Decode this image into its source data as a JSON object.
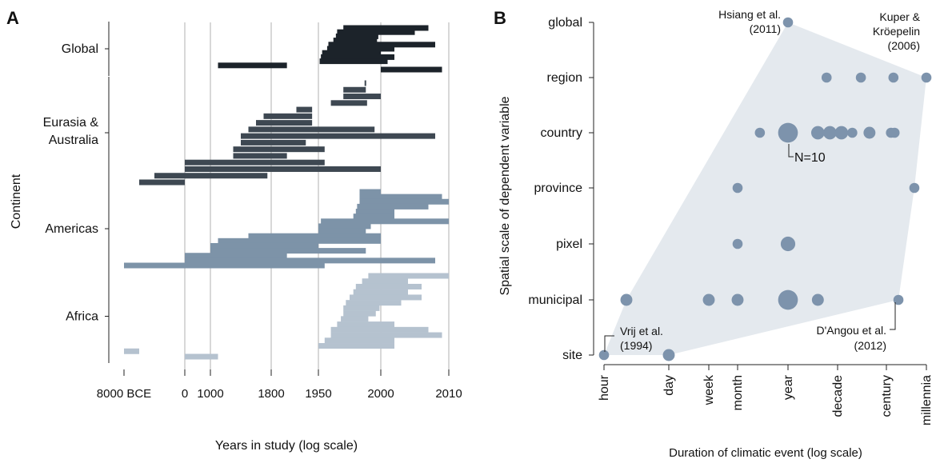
{
  "panel_a": {
    "panel_label": "A",
    "xlabel": "Years in study (log scale)",
    "ylabel": "Continent",
    "colors": {
      "Global": "#1c232a",
      "Eurasia & Australia": "#3e4852",
      "Americas": "#7d93a8",
      "Africa": "#b5c2cf"
    }
  },
  "panel_b": {
    "panel_label": "B",
    "xlabel": "Duration of climatic event (log scale)",
    "ylabel": "Spatial scale of dependent variable",
    "point_color": "#7d93ac",
    "hull_color": "#e4e9ee",
    "n_label": "N=10",
    "annotations": [
      {
        "id": "hsiang",
        "line1": "Hsiang et al.",
        "line2": "(2011)"
      },
      {
        "id": "kuper",
        "line1": "Kuper &",
        "line2": "Kröepelin",
        "line3": "(2006)"
      },
      {
        "id": "vrij",
        "line1": "Vrij et al.",
        "line2": "(1994)"
      },
      {
        "id": "dangou",
        "line1": "D'Angou et al.",
        "line2": "(2012)"
      }
    ]
  },
  "chart_data": [
    {
      "type": "bar",
      "subtype": "horizontal-range",
      "title": "",
      "xlabel": "Years in study (log scale)",
      "ylabel": "Continent",
      "x_tick_labels": [
        "8000 BCE",
        "0",
        "1000",
        "1800",
        "1950",
        "2000",
        "2010"
      ],
      "categories": [
        "Global",
        "Eurasia & Australia",
        "Americas",
        "Africa"
      ],
      "series": [
        {
          "name": "Global",
          "ranges": [
            [
              "1970",
              "2007"
            ],
            [
              "1965",
              "2005"
            ],
            [
              "1964",
              "1998"
            ],
            [
              "1962",
              "1997"
            ],
            [
              "1958",
              "2008"
            ],
            [
              "1957",
              "2002"
            ],
            [
              "1953",
              "2000"
            ],
            [
              "1952",
              "2002"
            ],
            [
              "1951",
              "2001"
            ],
            [
              "1100",
              "1850"
            ],
            [
              "2000",
              "2009"
            ]
          ]
        },
        {
          "name": "Eurasia & Australia",
          "ranges": [
            [
              "1987",
              "1988"
            ],
            [
              "1970",
              "1988"
            ],
            [
              "1970",
              "2000"
            ],
            [
              "1960",
              "1989"
            ],
            [
              "1880",
              "1930"
            ],
            [
              "1700",
              "1930"
            ],
            [
              "1600",
              "1930"
            ],
            [
              "1500",
              "1995"
            ],
            [
              "1400",
              "2008"
            ],
            [
              "1400",
              "1910"
            ],
            [
              "1300",
              "1955"
            ],
            [
              "1300",
              "1850"
            ],
            [
              "0",
              "1955"
            ],
            [
              "0",
              "2000"
            ],
            [
              "4000 BCE",
              "1750"
            ],
            [
              "6000 BCE",
              "0"
            ]
          ]
        },
        {
          "name": "Americas",
          "ranges": [
            [
              "1983",
              "2000"
            ],
            [
              "1983",
              "2009"
            ],
            [
              "1983",
              "2011"
            ],
            [
              "1981",
              "2007"
            ],
            [
              "1980",
              "2002"
            ],
            [
              "1978",
              "2002"
            ],
            [
              "1952",
              "2010"
            ],
            [
              "1950",
              "1992"
            ],
            [
              "1950",
              "1988"
            ],
            [
              "1500",
              "2000"
            ],
            [
              "1100",
              "2000"
            ],
            [
              "1000",
              "1950"
            ],
            [
              "1000",
              "1988"
            ],
            [
              "0",
              "1850"
            ],
            [
              "0",
              "2008"
            ],
            [
              "8000 BCE",
              "1955"
            ]
          ]
        },
        {
          "name": "Africa",
          "ranges": [
            [
              "1990",
              "2010"
            ],
            [
              "1985",
              "2004"
            ],
            [
              "1980",
              "2006"
            ],
            [
              "1978",
              "2004"
            ],
            [
              "1975",
              "2006"
            ],
            [
              "1972",
              "2003"
            ],
            [
              "1970",
              "1999"
            ],
            [
              "1970",
              "1996"
            ],
            [
              "1968",
              "1990"
            ],
            [
              "1965",
              "2002"
            ],
            [
              "1960",
              "2007"
            ],
            [
              "1960",
              "2009"
            ],
            [
              "1955",
              "2002"
            ],
            [
              "1950",
              "2002"
            ],
            [
              "8000 BCE",
              "6000 BCE"
            ],
            [
              "0",
              "1100"
            ]
          ]
        }
      ]
    },
    {
      "type": "scatter",
      "title": "",
      "xlabel": "Duration of climatic event (log scale)",
      "ylabel": "Spatial scale of dependent variable",
      "x_categories": [
        "hour",
        "day",
        "week",
        "month",
        "year",
        "decade",
        "century",
        "millennia"
      ],
      "y_categories": [
        "site",
        "municipal",
        "pixel",
        "province",
        "country",
        "region",
        "global"
      ],
      "size_legend": "N=10",
      "points": [
        {
          "x": "hour",
          "y": "site",
          "n": 1
        },
        {
          "x": "day",
          "y": "site",
          "n": 2
        },
        {
          "x": "3 hours",
          "y": "municipal",
          "n": 2
        },
        {
          "x": "week",
          "y": "municipal",
          "n": 2
        },
        {
          "x": "month",
          "y": "municipal",
          "n": 2
        },
        {
          "x": "year",
          "y": "municipal",
          "n": 10
        },
        {
          "x": "4 years",
          "y": "municipal",
          "n": 2
        },
        {
          "x": "200 years",
          "y": "municipal",
          "n": 1
        },
        {
          "x": "month",
          "y": "pixel",
          "n": 1
        },
        {
          "x": "year",
          "y": "pixel",
          "n": 4
        },
        {
          "x": "month",
          "y": "province",
          "n": 1
        },
        {
          "x": "500 years",
          "y": "province",
          "n": 1
        },
        {
          "x": "3 months",
          "y": "country",
          "n": 1
        },
        {
          "x": "year",
          "y": "country",
          "n": 10
        },
        {
          "x": "4 years",
          "y": "country",
          "n": 3
        },
        {
          "x": "7 years",
          "y": "country",
          "n": 3
        },
        {
          "x": "12 years",
          "y": "country",
          "n": 3
        },
        {
          "x": "20 years",
          "y": "country",
          "n": 1
        },
        {
          "x": "45 years",
          "y": "country",
          "n": 2
        },
        {
          "x": "130 years",
          "y": "country",
          "n": 1
        },
        {
          "x": "160 years",
          "y": "country",
          "n": 1
        },
        {
          "x": "6 years",
          "y": "region",
          "n": 1
        },
        {
          "x": "30 years",
          "y": "region",
          "n": 1
        },
        {
          "x": "150 years",
          "y": "region",
          "n": 1
        },
        {
          "x": "millennia",
          "y": "region",
          "n": 1
        },
        {
          "x": "year",
          "y": "global",
          "n": 1
        }
      ],
      "hull": true
    }
  ]
}
